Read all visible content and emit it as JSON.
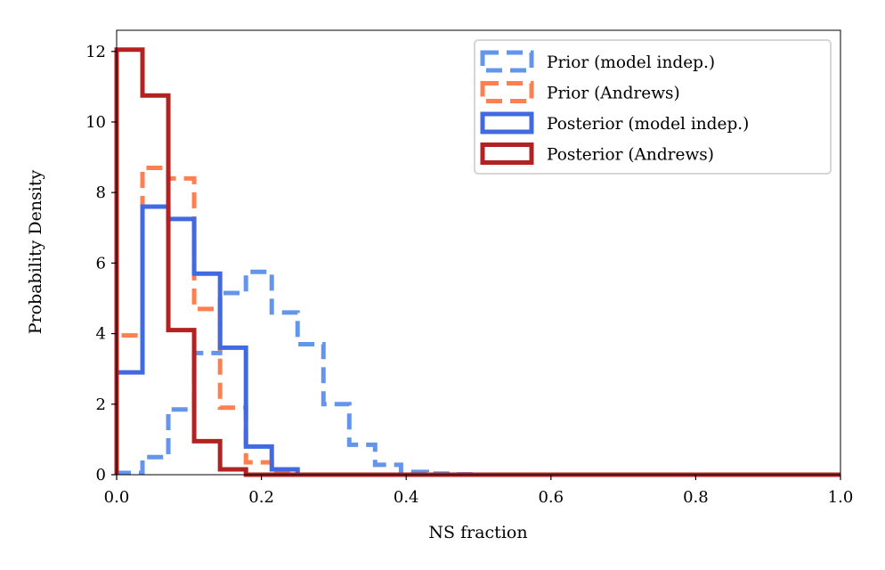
{
  "chart_data": {
    "type": "histogram",
    "title": "",
    "xlabel": "NS fraction",
    "ylabel": "Probability Density",
    "xlim": [
      0.0,
      1.0
    ],
    "ylim": [
      0,
      12.6
    ],
    "grid": false,
    "legend_position": "top-right",
    "x_ticks": [
      0.0,
      0.2,
      0.4,
      0.6,
      0.8,
      1.0
    ],
    "x_tick_labels": [
      "0.0",
      "0.2",
      "0.4",
      "0.6",
      "0.8",
      "1.0"
    ],
    "y_ticks": [
      0,
      2,
      4,
      6,
      8,
      10,
      12
    ],
    "y_tick_labels": [
      "0",
      "2",
      "4",
      "6",
      "8",
      "10",
      "12"
    ],
    "series": [
      {
        "name": "Prior (model indep.)",
        "color": "#6495ED",
        "style": "dashed",
        "bin_edges": [
          0.0,
          0.0357,
          0.0714,
          0.1071,
          0.1429,
          0.1786,
          0.2143,
          0.25,
          0.2857,
          0.3214,
          0.3571,
          0.3929,
          0.4286,
          0.4643,
          0.5,
          1.0
        ],
        "values": [
          0.05,
          0.5,
          1.85,
          3.45,
          5.15,
          5.75,
          4.6,
          3.7,
          2.0,
          0.85,
          0.28,
          0.08,
          0.03,
          0.01,
          0.0
        ]
      },
      {
        "name": "Prior (Andrews)",
        "color": "#FF7F50",
        "style": "dashed",
        "bin_edges": [
          0.0,
          0.0357,
          0.0714,
          0.1071,
          0.1429,
          0.1786,
          0.2143,
          0.25,
          1.0
        ],
        "values": [
          3.95,
          8.7,
          8.4,
          4.7,
          1.9,
          0.35,
          0.05,
          0.0
        ]
      },
      {
        "name": "Posterior (model indep.)",
        "color": "#4169E1",
        "style": "solid",
        "bin_edges": [
          0.0,
          0.0357,
          0.0714,
          0.1071,
          0.1429,
          0.1786,
          0.2143,
          0.25,
          1.0
        ],
        "values": [
          2.9,
          7.6,
          7.25,
          5.7,
          3.6,
          0.8,
          0.15,
          0.0
        ]
      },
      {
        "name": "Posterior (Andrews)",
        "color": "#B22222",
        "style": "solid",
        "bin_edges": [
          0.0,
          0.0357,
          0.0714,
          0.1071,
          0.1429,
          0.1786,
          1.0
        ],
        "values": [
          12.05,
          10.75,
          4.1,
          0.95,
          0.15,
          0.0
        ]
      }
    ]
  }
}
